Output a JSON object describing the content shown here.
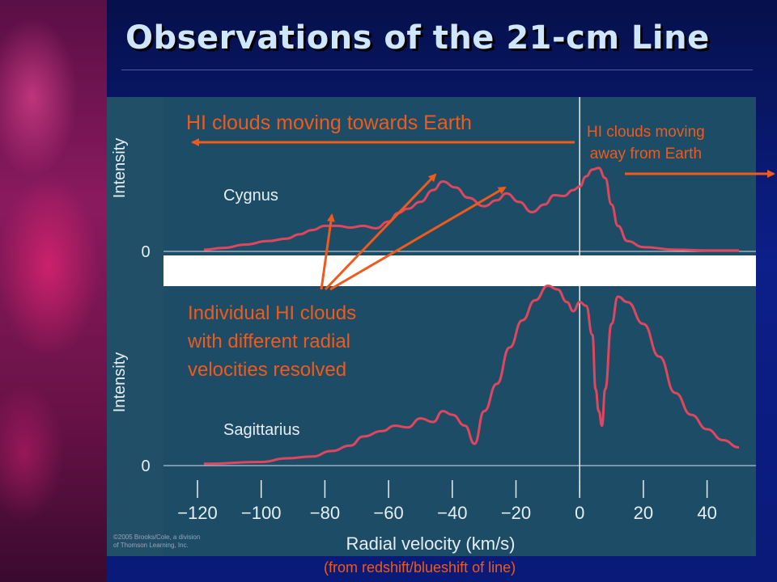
{
  "slide": {
    "title": "Observations of the 21-cm Line",
    "caption": "(from redshift/blueshift of line)",
    "copyright_line1": "©2005 Brooks/Cole, a division",
    "copyright_line2": "of Thomson Learning, Inc."
  },
  "annotations": {
    "towards": "HI clouds moving towards Earth",
    "away_line1": "HI clouds moving",
    "away_line2": "away from Earth",
    "individual_line1": "Individual HI clouds",
    "individual_line2": "with different radial",
    "individual_line3": "velocities resolved"
  },
  "chart_data": {
    "type": "line",
    "xlabel": "Radial velocity (km/s)",
    "ylabel": "Intensity",
    "xlim": [
      -120,
      52
    ],
    "x_ticks": [
      -120,
      -100,
      -80,
      -60,
      -40,
      -20,
      0,
      20,
      40
    ],
    "x_tick_labels": [
      "−120",
      "−100",
      "−80",
      "−60",
      "−40",
      "−20",
      "0",
      "20",
      "40"
    ],
    "y_zero_label": "0",
    "colors": {
      "panel_bg": "#1c4c66",
      "curve": "#e0465e",
      "text": "#e6eef3",
      "annotation": "#f05a1a"
    },
    "panels": [
      {
        "name": "Cygnus",
        "ylim": [
          0,
          1.1
        ],
        "x": [
          -118,
          -112,
          -105,
          -98,
          -92,
          -88,
          -84,
          -80,
          -76,
          -72,
          -68,
          -64,
          -60,
          -57,
          -54,
          -50,
          -46,
          -43,
          -39,
          -35,
          -30,
          -26,
          -23,
          -19,
          -15,
          -11,
          -8,
          -5,
          -2,
          0,
          2,
          4,
          6,
          8,
          10,
          12,
          15,
          20,
          30,
          40,
          50
        ],
        "y": [
          0.02,
          0.04,
          0.08,
          0.12,
          0.15,
          0.2,
          0.25,
          0.3,
          0.3,
          0.28,
          0.3,
          0.27,
          0.35,
          0.45,
          0.5,
          0.58,
          0.72,
          0.82,
          0.75,
          0.63,
          0.53,
          0.6,
          0.68,
          0.58,
          0.46,
          0.55,
          0.66,
          0.65,
          0.72,
          0.76,
          0.88,
          0.96,
          0.98,
          0.86,
          0.55,
          0.3,
          0.12,
          0.05,
          0.02,
          0.01,
          0.01
        ]
      },
      {
        "name": "Sagittarius",
        "ylim": [
          0,
          1.05
        ],
        "x": [
          -118,
          -100,
          -92,
          -84,
          -78,
          -72,
          -68,
          -62,
          -58,
          -54,
          -50,
          -46,
          -43,
          -40,
          -36,
          -33,
          -30,
          -26,
          -22,
          -18,
          -14,
          -10,
          -7,
          -4,
          -2,
          0,
          2,
          4,
          5,
          6,
          7,
          8,
          10,
          12,
          15,
          20,
          25,
          30,
          35,
          40,
          45,
          50
        ],
        "y": [
          0.01,
          0.02,
          0.04,
          0.05,
          0.08,
          0.11,
          0.16,
          0.19,
          0.22,
          0.21,
          0.26,
          0.24,
          0.3,
          0.28,
          0.22,
          0.12,
          0.3,
          0.45,
          0.65,
          0.8,
          0.91,
          0.99,
          0.97,
          0.9,
          0.85,
          0.9,
          0.88,
          0.72,
          0.42,
          0.3,
          0.22,
          0.42,
          0.78,
          0.93,
          0.9,
          0.78,
          0.6,
          0.4,
          0.28,
          0.2,
          0.14,
          0.1
        ]
      }
    ]
  }
}
